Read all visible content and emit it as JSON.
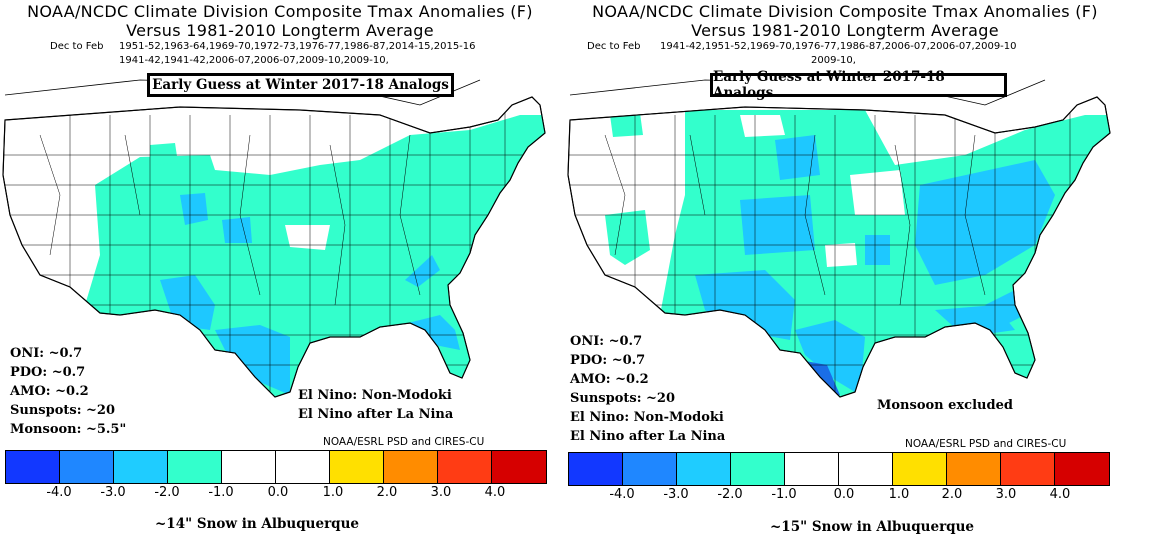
{
  "colors": {
    "cyan_fill": "#33ffcc",
    "blue_fill": "#1ec8ff",
    "deep_blue_fill": "#1a6ee6",
    "outline": "#000000"
  },
  "legend": {
    "bins": [
      "#1238ff",
      "#1f87ff",
      "#1fccff",
      "#33ffcc",
      "#ffffff",
      "#ffffff",
      "#ffe000",
      "#ff8c00",
      "#ff3c14",
      "#d60000"
    ],
    "ticks": [
      "-4.0",
      "-3.0",
      "-2.0",
      "-1.0",
      "0.0",
      "1.0",
      "2.0",
      "3.0",
      "4.0"
    ]
  },
  "left": {
    "title1": "NOAA/NCDC Climate Division Composite Tmax Anomalies (F)",
    "title2": "Versus 1981-2010 Longterm Average",
    "years_label": "Dec to Feb",
    "years_line1": "1951-52,1963-64,1969-70,1972-73,1976-77,1986-87,2014-15,2015-16",
    "years_line2": "1941-42,1941-42,2006-07,2006-07,2009-10,2009-10,",
    "banner": "Early Guess at Winter 2017-18 Analogs",
    "stats": [
      "ONI: ~0.7",
      "PDO: ~0.7",
      "AMO: ~0.2",
      "Sunspots: ~20",
      "Monsoon: ~5.5\""
    ],
    "enso_note": [
      "El Nino: Non-Modoki",
      "El Nino after La Nina"
    ],
    "credit": "NOAA/ESRL PSD and CIRES-CU",
    "snow": "~14\" Snow in Albuquerque"
  },
  "right": {
    "title1": "NOAA/NCDC Climate Division Composite Tmax Anomalies (F)",
    "title2": "Versus 1981-2010 Longterm Average",
    "years_label": "Dec to Feb",
    "years_line1": "1941-42,1951-52,1969-70,1976-77,1986-87,2006-07,2006-07,2009-10",
    "years_line2": "2009-10,",
    "banner": "Early Guess at Winter 2017-18 Analogs",
    "stats": [
      "ONI: ~0.7",
      "PDO: ~0.7",
      "AMO: ~0.2",
      "Sunspots: ~20",
      "El Nino: Non-Modoki",
      "El Nino after La Nina"
    ],
    "side_note": "Monsoon excluded",
    "credit": "NOAA/ESRL PSD and CIRES-CU",
    "snow": "~15\" Snow in Albuquerque"
  }
}
